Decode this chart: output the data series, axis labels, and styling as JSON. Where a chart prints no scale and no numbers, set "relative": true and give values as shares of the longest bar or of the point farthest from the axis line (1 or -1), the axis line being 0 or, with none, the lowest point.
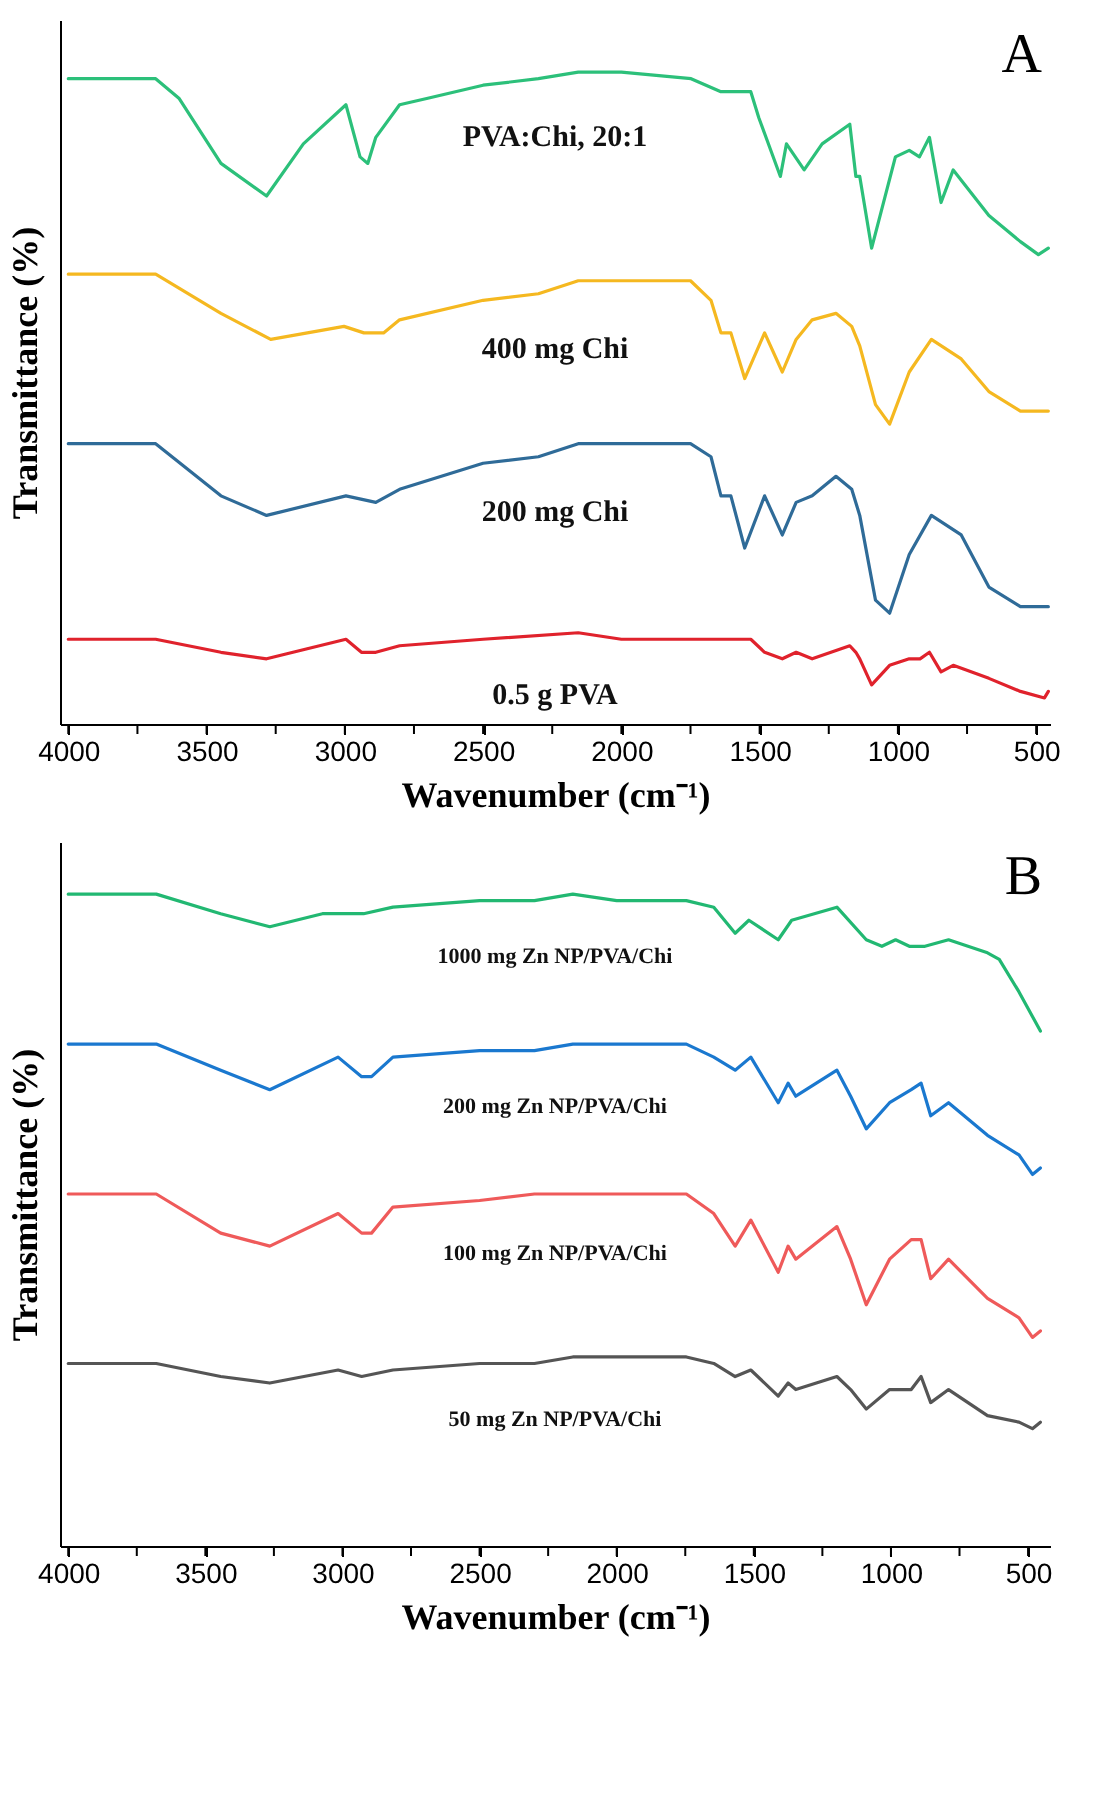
{
  "chart_data": [
    {
      "type": "line",
      "title": "A",
      "xlabel": "Wavenumber (cm⁻¹)",
      "ylabel": "Transmittance (%)",
      "relative": true,
      "grid": false,
      "line_style": "solid",
      "xlim": [
        4030,
        450
      ],
      "xticks": [
        4000,
        {
          "value": 3750,
          "label": null
        },
        3500,
        {
          "value": 3250,
          "label": null
        },
        3000,
        {
          "value": 2750,
          "label": null
        },
        2500,
        {
          "value": 2250,
          "label": null
        },
        2000,
        {
          "value": 1750,
          "label": null
        },
        1500,
        {
          "value": 1250,
          "label": null
        },
        1000,
        {
          "value": 750,
          "label": null
        },
        500
      ],
      "series": [
        {
          "name": "PVA:Chi, 20:1",
          "color": "#2cc07a",
          "x": [
            4000,
            3800,
            3684,
            3600,
            3448,
            3283,
            3150,
            2996,
            2945,
            2917,
            2888,
            2802,
            2700,
            2500,
            2300,
            2156,
            2000,
            1748,
            1640,
            1604,
            1532,
            1503,
            1425,
            1403,
            1339,
            1274,
            1174,
            1152,
            1138,
            1095,
            1009,
            959,
            922,
            886,
            844,
            800,
            671,
            557,
            492,
            456
          ],
          "values": [
            0.99,
            0.99,
            0.99,
            0.96,
            0.86,
            0.81,
            0.89,
            0.95,
            0.87,
            0.86,
            0.9,
            0.95,
            0.96,
            0.98,
            0.99,
            1.0,
            1.0,
            0.99,
            0.97,
            0.97,
            0.97,
            0.93,
            0.84,
            0.89,
            0.85,
            0.89,
            0.92,
            0.84,
            0.84,
            0.73,
            0.87,
            0.88,
            0.87,
            0.9,
            0.8,
            0.85,
            0.78,
            0.74,
            0.72,
            0.73
          ]
        },
        {
          "name": "400 mg Chi",
          "color": "#f5b820",
          "x": [
            4000,
            3800,
            3684,
            3448,
            3268,
            3003,
            2931,
            2860,
            2802,
            2500,
            2300,
            2156,
            2000,
            1750,
            1676,
            1640,
            1604,
            1554,
            1482,
            1418,
            1368,
            1310,
            1224,
            1167,
            1138,
            1081,
            1030,
            959,
            879,
            771,
            671,
            557,
            456
          ],
          "values": [
            0.69,
            0.69,
            0.69,
            0.63,
            0.59,
            0.61,
            0.6,
            0.6,
            0.62,
            0.65,
            0.66,
            0.68,
            0.68,
            0.68,
            0.65,
            0.6,
            0.6,
            0.53,
            0.6,
            0.54,
            0.59,
            0.62,
            0.63,
            0.61,
            0.58,
            0.49,
            0.46,
            0.54,
            0.59,
            0.56,
            0.51,
            0.48,
            0.48
          ]
        },
        {
          "name": "200 mg Chi",
          "color": "#2f6b98",
          "x": [
            4000,
            3800,
            3684,
            3448,
            3283,
            2996,
            2888,
            2802,
            2500,
            2300,
            2156,
            2000,
            1750,
            1676,
            1640,
            1604,
            1554,
            1482,
            1418,
            1368,
            1310,
            1224,
            1167,
            1138,
            1081,
            1030,
            959,
            879,
            771,
            671,
            557,
            456
          ],
          "values": [
            0.43,
            0.43,
            0.43,
            0.35,
            0.32,
            0.35,
            0.34,
            0.36,
            0.4,
            0.41,
            0.43,
            0.43,
            0.43,
            0.41,
            0.35,
            0.35,
            0.27,
            0.35,
            0.29,
            0.34,
            0.35,
            0.38,
            0.36,
            0.32,
            0.19,
            0.17,
            0.26,
            0.32,
            0.29,
            0.21,
            0.18,
            0.18
          ]
        },
        {
          "name": "0.5 g PVA",
          "color": "#e0222c",
          "x": [
            4000,
            3800,
            3684,
            3448,
            3283,
            2996,
            2940,
            2888,
            2802,
            2500,
            2156,
            2000,
            1750,
            1532,
            1482,
            1418,
            1368,
            1310,
            1174,
            1152,
            1138,
            1095,
            1030,
            959,
            920,
            886,
            844,
            800,
            671,
            557,
            470,
            456
          ],
          "values": [
            0.13,
            0.13,
            0.13,
            0.11,
            0.1,
            0.13,
            0.11,
            0.11,
            0.12,
            0.13,
            0.14,
            0.13,
            0.13,
            0.13,
            0.11,
            0.1,
            0.11,
            0.1,
            0.12,
            0.11,
            0.1,
            0.06,
            0.09,
            0.1,
            0.1,
            0.11,
            0.08,
            0.09,
            0.07,
            0.05,
            0.04,
            0.05
          ]
        }
      ]
    },
    {
      "type": "line",
      "title": "B",
      "xlabel": "Wavenumber (cm⁻¹)",
      "ylabel": "Transmittance (%)",
      "relative": true,
      "grid": false,
      "line_style": "solid",
      "xlim": [
        4030,
        420
      ],
      "xticks": [
        4000,
        {
          "value": 3750,
          "label": null
        },
        3500,
        {
          "value": 3250,
          "label": null
        },
        3000,
        {
          "value": 2750,
          "label": null
        },
        2500,
        {
          "value": 2250,
          "label": null
        },
        2000,
        {
          "value": 1750,
          "label": null
        },
        1500,
        {
          "value": 1250,
          "label": null
        },
        1000,
        {
          "value": 750,
          "label": null
        },
        500
      ],
      "series": [
        {
          "name": "1000 mg Zn NP/PVA/Chi",
          "color": "#22b872",
          "x": [
            4000,
            3800,
            3679,
            3444,
            3265,
            3073,
            2923,
            2816,
            2500,
            2300,
            2160,
            2000,
            1746,
            1646,
            1568,
            1518,
            1411,
            1362,
            1197,
            1090,
            1033,
            983,
            933,
            876,
            790,
            648,
            605,
            533,
            455
          ],
          "values": [
            1.0,
            1.0,
            1.0,
            0.97,
            0.95,
            0.97,
            0.97,
            0.98,
            0.99,
            0.99,
            1.0,
            0.99,
            0.99,
            0.98,
            0.94,
            0.96,
            0.93,
            0.96,
            0.98,
            0.93,
            0.92,
            0.93,
            0.92,
            0.92,
            0.93,
            0.91,
            0.9,
            0.85,
            0.79
          ]
        },
        {
          "name": "200 mg Zn NP/PVA/Chi",
          "color": "#1a78cf",
          "x": [
            4000,
            3800,
            3679,
            3444,
            3265,
            3016,
            2930,
            2894,
            2816,
            2500,
            2300,
            2160,
            2000,
            1746,
            1646,
            1568,
            1511,
            1411,
            1375,
            1347,
            1197,
            1147,
            1090,
            1005,
            926,
            890,
            855,
            790,
            648,
            533,
            484,
            455
          ],
          "values": [
            0.77,
            0.77,
            0.77,
            0.73,
            0.7,
            0.75,
            0.72,
            0.72,
            0.75,
            0.76,
            0.76,
            0.77,
            0.77,
            0.77,
            0.75,
            0.73,
            0.75,
            0.68,
            0.71,
            0.69,
            0.73,
            0.69,
            0.64,
            0.68,
            0.7,
            0.71,
            0.66,
            0.68,
            0.63,
            0.6,
            0.57,
            0.58
          ]
        },
        {
          "name": "100 mg Zn NP/PVA/Chi",
          "color": "#ef5a5a",
          "x": [
            4000,
            3800,
            3679,
            3444,
            3265,
            3016,
            2930,
            2894,
            2816,
            2500,
            2300,
            2160,
            2000,
            1746,
            1646,
            1568,
            1511,
            1411,
            1375,
            1347,
            1197,
            1147,
            1090,
            1005,
            926,
            890,
            855,
            790,
            648,
            533,
            484,
            455
          ],
          "values": [
            0.54,
            0.54,
            0.54,
            0.48,
            0.46,
            0.51,
            0.48,
            0.48,
            0.52,
            0.53,
            0.54,
            0.54,
            0.54,
            0.54,
            0.51,
            0.46,
            0.5,
            0.42,
            0.46,
            0.44,
            0.49,
            0.44,
            0.37,
            0.44,
            0.47,
            0.47,
            0.41,
            0.44,
            0.38,
            0.35,
            0.32,
            0.33
          ]
        },
        {
          "name": "50 mg Zn NP/PVA/Chi",
          "color": "#555555",
          "x": [
            4000,
            3800,
            3679,
            3444,
            3265,
            3016,
            2930,
            2816,
            2500,
            2300,
            2160,
            2000,
            1746,
            1646,
            1568,
            1511,
            1411,
            1375,
            1347,
            1197,
            1147,
            1090,
            1005,
            926,
            890,
            855,
            790,
            648,
            533,
            484,
            455
          ],
          "values": [
            0.28,
            0.28,
            0.28,
            0.26,
            0.25,
            0.27,
            0.26,
            0.27,
            0.28,
            0.28,
            0.29,
            0.29,
            0.29,
            0.28,
            0.26,
            0.27,
            0.23,
            0.25,
            0.24,
            0.26,
            0.24,
            0.21,
            0.24,
            0.24,
            0.26,
            0.22,
            0.24,
            0.2,
            0.19,
            0.18,
            0.19
          ]
        }
      ]
    }
  ]
}
